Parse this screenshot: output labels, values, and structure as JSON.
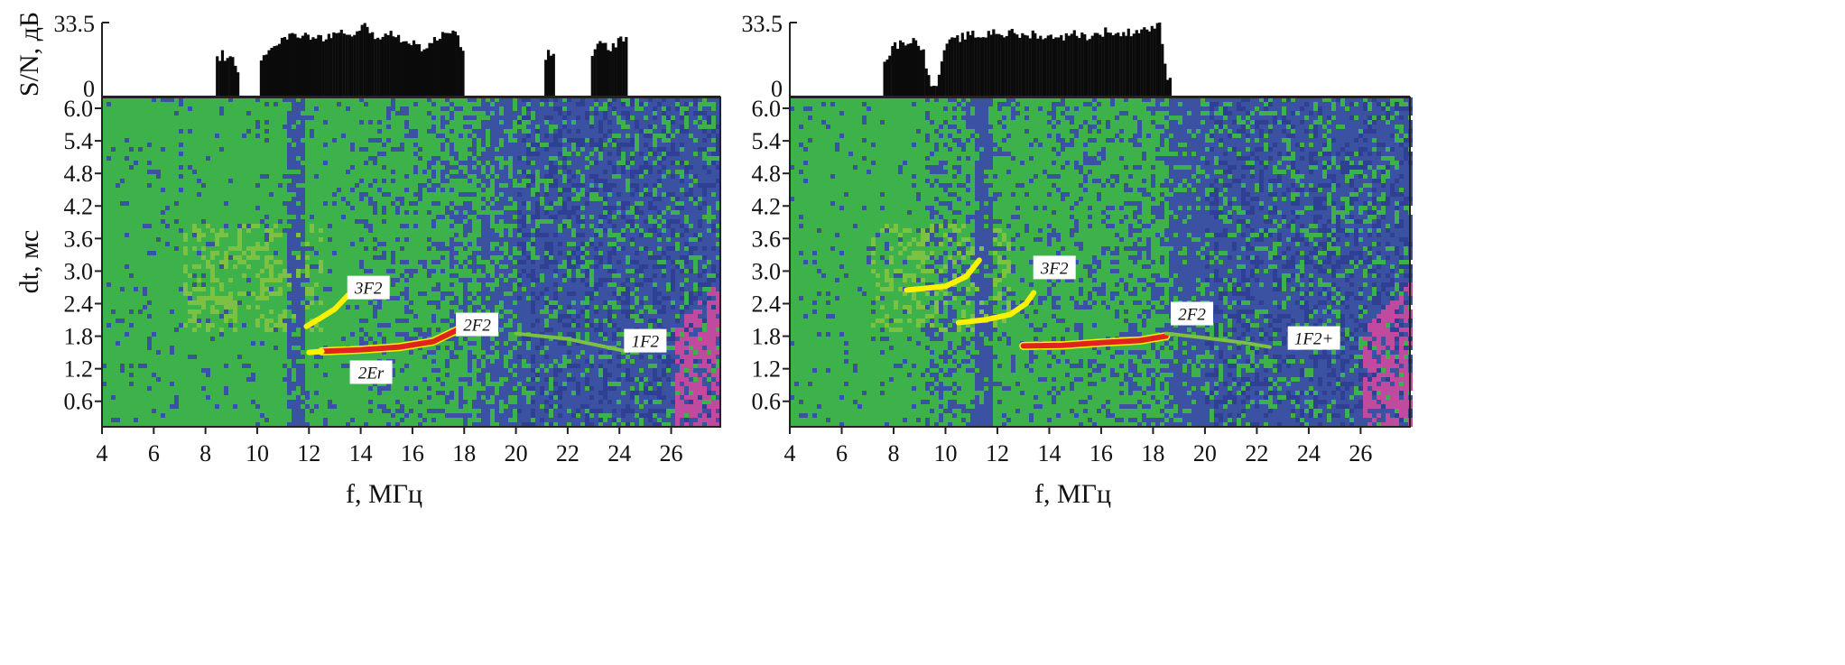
{
  "colors": {
    "green": "#3db24a",
    "light_green": "#7cc142",
    "blue": "#3b52a3",
    "dark_blue": "#2e3f94",
    "yellow": "#fff200",
    "red": "#e0231c",
    "magenta": "#c04b9e",
    "bar": "#0b0b0b"
  },
  "chart_data": [
    {
      "type": "heatmap",
      "xlabel": "f, МГц",
      "ylabel": "dt, мс",
      "snr_label": "S/N, дБ",
      "xlim": [
        4,
        27.9
      ],
      "ylim": [
        0.13,
        6.2
      ],
      "snr_lim": [
        0,
        33.5
      ],
      "x_ticks": [
        "4",
        "6",
        "8",
        "10",
        "12",
        "14",
        "16",
        "18",
        "20",
        "22",
        "24",
        "26"
      ],
      "y_ticks": [
        "0.6",
        "1.2",
        "1.8",
        "2.4",
        "3.0",
        "3.6",
        "4.2",
        "4.8",
        "5.4",
        "6.0"
      ],
      "snr_ticks": [
        "0",
        "33.5"
      ],
      "snr": [
        [
          8.4,
          17
        ],
        [
          8.6,
          19
        ],
        [
          8.8,
          17
        ],
        [
          9.0,
          16
        ],
        [
          9.2,
          11
        ],
        [
          9.3,
          0
        ],
        [
          10.1,
          18
        ],
        [
          10.4,
          22
        ],
        [
          10.8,
          25
        ],
        [
          11.2,
          27
        ],
        [
          11.6,
          28
        ],
        [
          12.0,
          27
        ],
        [
          12.4,
          26
        ],
        [
          12.8,
          28
        ],
        [
          13.2,
          29
        ],
        [
          13.6,
          26
        ],
        [
          14.0,
          31
        ],
        [
          14.2,
          33
        ],
        [
          14.4,
          28
        ],
        [
          14.8,
          27
        ],
        [
          15.2,
          28
        ],
        [
          15.6,
          26
        ],
        [
          16.0,
          24
        ],
        [
          16.4,
          22
        ],
        [
          16.8,
          25
        ],
        [
          17.2,
          29
        ],
        [
          17.6,
          31
        ],
        [
          17.9,
          20
        ],
        [
          18.0,
          0
        ],
        [
          21.1,
          17
        ],
        [
          21.2,
          23
        ],
        [
          21.4,
          18
        ],
        [
          21.5,
          0
        ],
        [
          22.9,
          18
        ],
        [
          23.2,
          24
        ],
        [
          23.6,
          22
        ],
        [
          24.0,
          26
        ],
        [
          24.3,
          0
        ]
      ],
      "echo_traces": [
        {
          "label": "3F2",
          "points": [
            [
              11.9,
              1.98
            ],
            [
              12.5,
              2.15
            ],
            [
              13.0,
              2.3
            ],
            [
              13.5,
              2.55
            ]
          ],
          "color": "yellow",
          "label_at": [
            14.3,
            2.68
          ]
        },
        {
          "label": "2F2",
          "points": [
            [
              12.5,
              1.52
            ],
            [
              14.0,
              1.55
            ],
            [
              15.5,
              1.6
            ],
            [
              16.8,
              1.7
            ],
            [
              17.8,
              1.93
            ]
          ],
          "color": "red",
          "label_at": [
            18.5,
            2.0
          ]
        },
        {
          "label": "2Er",
          "points": [
            [
              12.0,
              1.5
            ],
            [
              12.5,
              1.52
            ]
          ],
          "color": "yellow",
          "label_at": [
            14.4,
            1.12
          ]
        },
        {
          "label": "1F2",
          "points": [
            [
              20.0,
              1.85
            ],
            [
              22.0,
              1.75
            ],
            [
              23.5,
              1.6
            ],
            [
              24.3,
              1.52
            ]
          ],
          "color": "light_green",
          "label_at": [
            25.0,
            1.7
          ]
        }
      ]
    },
    {
      "type": "heatmap",
      "xlabel": "f, МГц",
      "ylabel": "",
      "xlim": [
        4,
        27.9
      ],
      "ylim": [
        0.13,
        6.2
      ],
      "snr_lim": [
        0,
        33.5
      ],
      "x_ticks": [
        "4",
        "6",
        "8",
        "10",
        "12",
        "14",
        "16",
        "18",
        "20",
        "22",
        "24",
        "26"
      ],
      "y_ticks": [
        "0.6",
        "1.2",
        "1.8",
        "2.4",
        "3.0",
        "3.6",
        "4.2",
        "4.8",
        "5.4",
        "6.0"
      ],
      "snr_ticks": [
        "0",
        "33.5"
      ],
      "snr": [
        [
          7.6,
          15
        ],
        [
          7.8,
          20
        ],
        [
          8.0,
          23
        ],
        [
          8.4,
          25
        ],
        [
          8.8,
          25
        ],
        [
          9.1,
          22
        ],
        [
          9.3,
          8
        ],
        [
          9.5,
          4
        ],
        [
          9.7,
          8
        ],
        [
          9.9,
          22
        ],
        [
          10.2,
          25
        ],
        [
          10.6,
          27
        ],
        [
          11.0,
          28
        ],
        [
          11.4,
          27
        ],
        [
          11.8,
          30
        ],
        [
          12.2,
          28
        ],
        [
          12.6,
          29
        ],
        [
          13.0,
          27
        ],
        [
          13.4,
          29
        ],
        [
          13.8,
          26
        ],
        [
          14.2,
          28
        ],
        [
          14.6,
          27
        ],
        [
          15.0,
          29
        ],
        [
          15.4,
          27
        ],
        [
          15.8,
          28
        ],
        [
          16.2,
          30
        ],
        [
          16.6,
          28
        ],
        [
          17.0,
          29
        ],
        [
          17.4,
          30
        ],
        [
          17.8,
          31
        ],
        [
          18.2,
          32
        ],
        [
          18.5,
          9
        ],
        [
          18.7,
          0
        ]
      ],
      "echo_traces": [
        {
          "label": "3F2",
          "points": [
            [
              8.5,
              2.65
            ],
            [
              10.0,
              2.72
            ],
            [
              10.8,
              2.9
            ],
            [
              11.3,
              3.2
            ]
          ],
          "color": "yellow",
          "label_at": [
            14.2,
            3.05
          ]
        },
        {
          "label": "",
          "points": [
            [
              10.5,
              2.05
            ],
            [
              11.5,
              2.1
            ],
            [
              12.5,
              2.2
            ],
            [
              13.1,
              2.4
            ],
            [
              13.4,
              2.6
            ]
          ],
          "color": "yellow",
          "label_at": null
        },
        {
          "label": "2F2",
          "points": [
            [
              13.0,
              1.62
            ],
            [
              14.5,
              1.63
            ],
            [
              16.0,
              1.68
            ],
            [
              17.5,
              1.72
            ],
            [
              18.5,
              1.8
            ]
          ],
          "color": "red",
          "label_at": [
            19.5,
            2.2
          ]
        },
        {
          "label": "1F2+",
          "points": [
            [
              18.5,
              1.85
            ],
            [
              20.0,
              1.77
            ],
            [
              21.5,
              1.68
            ],
            [
              22.5,
              1.6
            ]
          ],
          "color": "light_green",
          "label_at": [
            24.2,
            1.75
          ]
        }
      ]
    }
  ]
}
